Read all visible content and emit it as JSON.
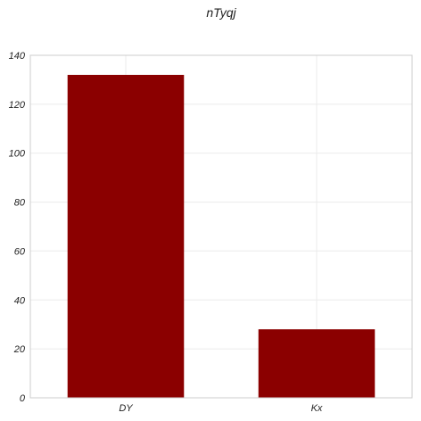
{
  "chart_data": {
    "type": "bar",
    "title": "nTyqj",
    "xlabel": "",
    "ylabel": "",
    "categories": [
      "DY",
      "Kx"
    ],
    "values": [
      132,
      28
    ],
    "ylim": [
      0,
      140
    ],
    "yticks": [
      0,
      20,
      40,
      60,
      80,
      100,
      120,
      140
    ],
    "grid": true,
    "legend": "none",
    "colors": {
      "bar": "#8b0000",
      "grid": "#ebebeb",
      "frame": "#cccccc",
      "background": "#ffffff"
    }
  }
}
